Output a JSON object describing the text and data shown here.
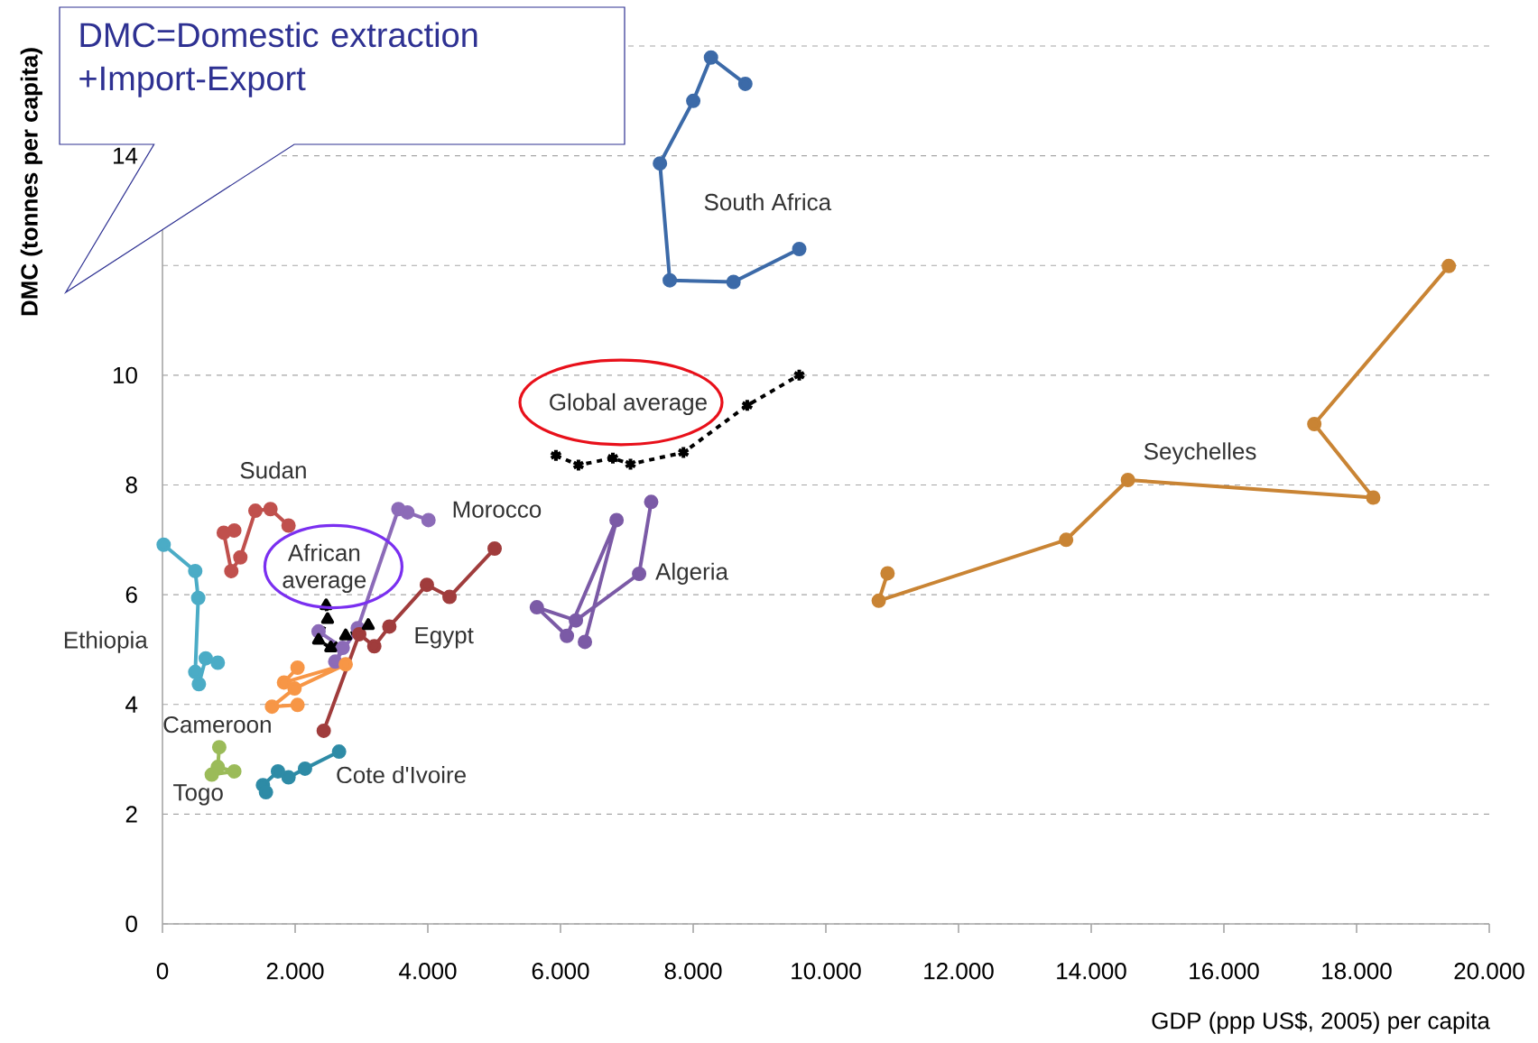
{
  "chart_data": {
    "type": "line",
    "xlabel": "GDP (ppp US$, 2005) per capita",
    "ylabel": "DMC (tonnes per capita)",
    "xlim": [
      0,
      20000
    ],
    "ylim": [
      0,
      16
    ],
    "xticks": [
      0,
      {
        "value": 2000,
        "label": "2.000"
      },
      {
        "value": 4000,
        "label": "4.000"
      },
      {
        "value": 6000,
        "label": "6.000"
      },
      {
        "value": 8000,
        "label": "8.000"
      },
      {
        "value": 10000,
        "label": "10.000"
      },
      {
        "value": 12000,
        "label": "12.000"
      },
      {
        "value": 14000,
        "label": "14.000"
      },
      {
        "value": 16000,
        "label": "16.000"
      },
      {
        "value": 18000,
        "label": "18.000"
      },
      {
        "value": 20000,
        "label": "20.000"
      }
    ],
    "yticks": [
      0,
      2,
      4,
      6,
      8,
      10,
      {
        "value": 12,
        "label": null
      },
      14,
      {
        "value": 16,
        "label": null
      }
    ],
    "grid": "y",
    "marker": "circle",
    "line_style": "solid",
    "series": [
      {
        "name": "South Africa",
        "color": "#3c6aa8",
        "x": [
          8786,
          8268,
          8001,
          7499,
          7647,
          8608,
          9599
        ],
        "values": [
          15.31,
          15.79,
          15.0,
          13.86,
          11.73,
          11.7,
          12.3
        ]
      },
      {
        "name": "Global average",
        "color": "#000000",
        "marker": "cross",
        "line_style": "dashed",
        "x": [
          5931,
          6271,
          6789,
          7055,
          7853,
          8815,
          9599
        ],
        "values": [
          8.54,
          8.36,
          8.49,
          8.38,
          8.59,
          9.45,
          10.0
        ]
      },
      {
        "name": "Seychelles",
        "color": "#c98434",
        "x": [
          10930,
          10797,
          13622,
          14553,
          18251,
          17363,
          19390
        ],
        "values": [
          6.39,
          5.89,
          7.0,
          8.09,
          7.77,
          9.11,
          11.99
        ]
      },
      {
        "name": "Algeria",
        "color": "#7b5aa6",
        "x": [
          6368,
          6845,
          6096,
          5643,
          6232,
          7185,
          7367
        ],
        "values": [
          5.14,
          7.36,
          5.25,
          5.77,
          5.53,
          6.38,
          7.69
        ]
      },
      {
        "name": "Morocco",
        "color": "#8c6bb8",
        "x": [
          2353,
          2717,
          2604,
          2944,
          3556,
          3692,
          4010
        ],
        "values": [
          5.33,
          5.03,
          4.78,
          5.39,
          7.56,
          7.5,
          7.36
        ]
      },
      {
        "name": "Egypt",
        "color": "#a03c3c",
        "x": [
          2431,
          2966,
          3193,
          3420,
          3986,
          4327,
          5007
        ],
        "values": [
          3.52,
          5.28,
          5.06,
          5.42,
          6.18,
          5.96,
          6.84
        ]
      },
      {
        "name": "Sudan",
        "color": "#c0504d",
        "x": [
          1083,
          924,
          1038,
          1174,
          1401,
          1628,
          1900
        ],
        "values": [
          7.17,
          7.13,
          6.43,
          6.68,
          7.53,
          7.56,
          7.26
        ]
      },
      {
        "name": "Ethiopia",
        "color": "#4bacc6",
        "x": [
          18,
          494,
          539,
          494,
          549,
          652,
          834
        ],
        "values": [
          6.91,
          6.43,
          5.94,
          4.59,
          4.37,
          4.84,
          4.76
        ]
      },
      {
        "name": "Cameroon",
        "color": "#f79646",
        "x": [
          2036,
          1832,
          2762,
          1991,
          1651,
          2036
        ],
        "values": [
          4.67,
          4.4,
          4.73,
          4.29,
          3.96,
          3.99
        ]
      },
      {
        "name": "Cote d'Ivoire",
        "color": "#2e8ba6",
        "x": [
          2662,
          2149,
          1900,
          1741,
          1515,
          1560
        ],
        "values": [
          3.14,
          2.83,
          2.67,
          2.78,
          2.53,
          2.4
        ]
      },
      {
        "name": "Togo",
        "color": "#9bbb59",
        "x": [
          856,
          834,
          1083,
          743
        ],
        "values": [
          3.22,
          2.86,
          2.78,
          2.72
        ]
      },
      {
        "name": "African average",
        "color": "#000000",
        "marker": "triangle",
        "line_style": "dashed",
        "x": [
          2467,
          2489,
          2353,
          2536,
          2762,
          3102
        ],
        "values": [
          5.8,
          5.55,
          5.17,
          5.03,
          5.25,
          5.44
        ]
      }
    ],
    "annotations": [
      "DMC=Domestic extraction +Import-Export"
    ]
  }
}
